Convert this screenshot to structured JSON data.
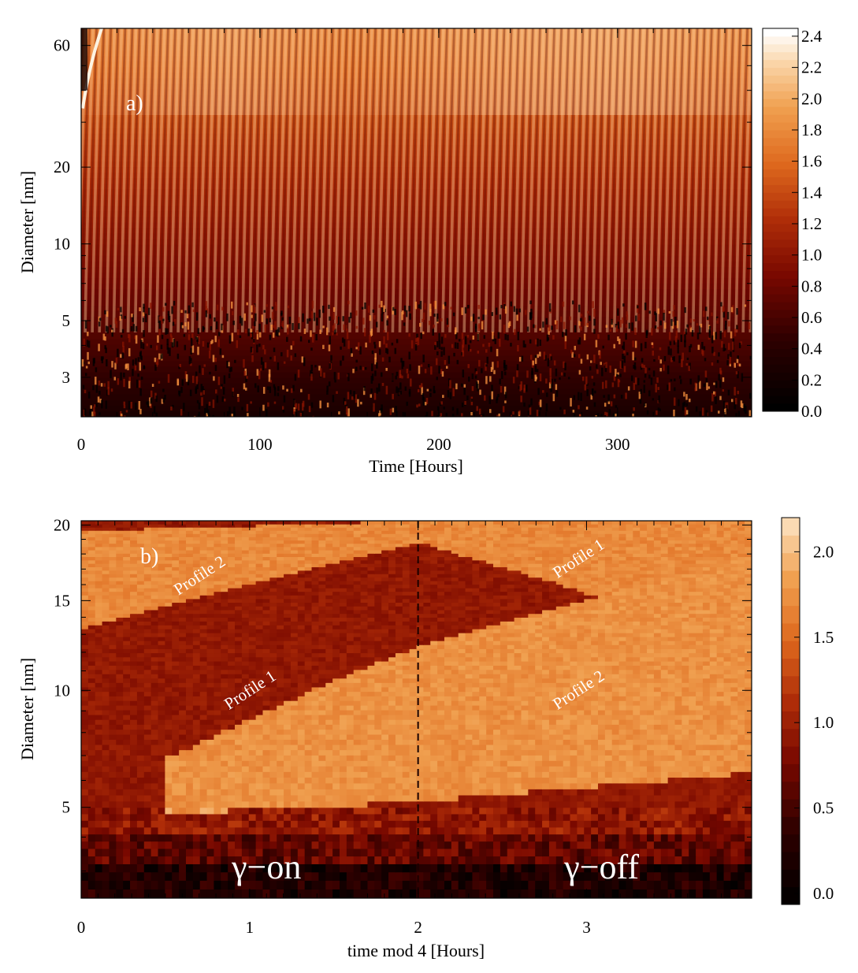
{
  "chart_data": [
    {
      "type": "heatmap",
      "panel_label": "a)",
      "xlabel": "Time [Hours]",
      "ylabel": "Diameter   [nm]",
      "xlim": [
        0,
        375
      ],
      "ylim": [
        2.1,
        70
      ],
      "yscale": "log",
      "x_ticks": [
        {
          "value": 0,
          "label": "0"
        },
        {
          "value": 100,
          "label": "100"
        },
        {
          "value": 200,
          "label": "200"
        },
        {
          "value": 300,
          "label": "300"
        }
      ],
      "y_ticks": [
        {
          "value": 3,
          "label": "3"
        },
        {
          "value": 5,
          "label": "5"
        },
        {
          "value": 10,
          "label": "10"
        },
        {
          "value": 20,
          "label": "20"
        },
        {
          "value": 60,
          "label": "60"
        }
      ],
      "colorbar": {
        "range": [
          0.0,
          2.45
        ],
        "ticks": [
          "0.0",
          "0.2",
          "0.4",
          "0.6",
          "0.8",
          "1.0",
          "1.2",
          "1.4",
          "1.6",
          "1.8",
          "2.0",
          "2.2",
          "2.4"
        ]
      },
      "description_values": {
        "stripe_period_hours": 4,
        "colormap": "black-red-orange-white"
      }
    },
    {
      "type": "heatmap",
      "panel_label": "b)",
      "xlabel": "time mod 4 [Hours]",
      "ylabel": "Diameter   [nm]",
      "xlim": [
        0,
        3.98
      ],
      "ylim": [
        2.3,
        20.3
      ],
      "yscale": "sqrt",
      "x_ticks": [
        {
          "value": 0,
          "label": "0"
        },
        {
          "value": 1,
          "label": "1"
        },
        {
          "value": 2,
          "label": "2"
        },
        {
          "value": 3,
          "label": "3"
        }
      ],
      "y_ticks": [
        {
          "value": 5,
          "label": "5"
        },
        {
          "value": 10,
          "label": "10"
        },
        {
          "value": 15,
          "label": "15"
        },
        {
          "value": 20,
          "label": "20"
        }
      ],
      "colorbar": {
        "range": [
          0.0,
          2.2
        ],
        "ticks": [
          "0.0",
          "0.5",
          "1.0",
          "1.5",
          "2.0"
        ]
      },
      "dashed_line_x": 2,
      "annotations": [
        {
          "text": "Profile 2",
          "x": 0.72,
          "y": 16.3
        },
        {
          "text": "Profile 1",
          "x": 2.97,
          "y": 17.4
        },
        {
          "text": "Profile 1",
          "x": 1.02,
          "y": 9.8
        },
        {
          "text": "Profile 2",
          "x": 2.97,
          "y": 9.8
        }
      ],
      "regions": [
        {
          "text": "γ−on",
          "x": 1.1,
          "y": 3.1
        },
        {
          "text": "γ−off",
          "x": 3.09,
          "y": 3.1
        }
      ],
      "bands": [
        {
          "name": "Profile 1",
          "x": [
            0.55,
            2.0,
            3.98
          ],
          "d_upper": [
            7.0,
            12.3,
            17.8
          ],
          "d_lower": [
            4.8,
            5.2,
            6.3
          ]
        },
        {
          "name": "Profile 2",
          "x": [
            0.0,
            2.0,
            3.98
          ],
          "d_upper": [
            19.6,
            20.3,
            20.3
          ],
          "d_lower": [
            13.3,
            18.8,
            12.2
          ]
        }
      ]
    }
  ]
}
